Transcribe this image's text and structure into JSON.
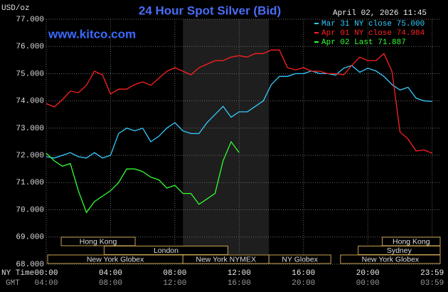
{
  "chart_data": {
    "type": "line",
    "title": "24 Hour Spot Silver (Bid)",
    "unit_label": "USD/oz",
    "timestamp": "April 02, 2026 11:45",
    "watermark": "www.kitco.com",
    "x_row_labels": [
      "NY Time",
      "GMT"
    ],
    "x": [
      0,
      0.5,
      1,
      1.5,
      2,
      2.5,
      3,
      3.5,
      4,
      4.5,
      5,
      5.5,
      6,
      6.5,
      7,
      7.5,
      8,
      8.5,
      9,
      9.5,
      10,
      10.5,
      11,
      11.5,
      12,
      12.5,
      13,
      13.5,
      14,
      14.5,
      15,
      15.5,
      16,
      16.5,
      17,
      17.5,
      18,
      18.5,
      19,
      19.5,
      20,
      20.5,
      21,
      21.5,
      22,
      22.5,
      23,
      23.5,
      24
    ],
    "series": [
      {
        "name": "Mar 31 NY close 75.000",
        "color": "#33ccff",
        "values": [
          71.95,
          71.9,
          72.0,
          72.1,
          71.95,
          71.9,
          72.1,
          71.9,
          72.0,
          72.8,
          73.0,
          72.9,
          73.0,
          72.5,
          72.7,
          73.0,
          73.2,
          72.9,
          72.8,
          72.8,
          73.2,
          73.5,
          73.8,
          73.4,
          73.6,
          73.6,
          73.8,
          74.0,
          74.6,
          74.9,
          74.9,
          75.0,
          75.0,
          75.1,
          75.0,
          75.0,
          74.95,
          75.2,
          75.3,
          75.05,
          75.2,
          75.1,
          74.9,
          74.6,
          74.4,
          74.5,
          74.1,
          74.0,
          73.98
        ]
      },
      {
        "name": "Apr 01 NY close 74.984",
        "color": "#ff2020",
        "values": [
          73.9,
          73.78,
          74.04,
          74.36,
          74.3,
          74.57,
          75.09,
          74.96,
          74.25,
          74.43,
          74.43,
          74.6,
          74.7,
          74.57,
          74.83,
          75.09,
          75.22,
          75.09,
          74.96,
          75.22,
          75.35,
          75.48,
          75.48,
          75.61,
          75.66,
          75.61,
          75.74,
          75.74,
          75.87,
          75.87,
          75.22,
          75.14,
          75.22,
          75.09,
          75.09,
          75.0,
          75.0,
          74.96,
          75.3,
          75.61,
          75.48,
          75.48,
          75.74,
          75.09,
          72.86,
          72.6,
          72.16,
          72.2,
          72.08
        ]
      },
      {
        "name": "Apr 02 Last 71.887",
        "color": "#33ff33",
        "values": [
          72.08,
          71.8,
          71.6,
          71.7,
          70.7,
          69.9,
          70.3,
          70.5,
          70.7,
          71.0,
          71.5,
          71.5,
          71.4,
          71.2,
          71.1,
          70.8,
          70.9,
          70.6,
          70.6,
          70.2,
          70.4,
          70.6,
          71.8,
          72.5,
          72.1,
          null,
          null,
          null,
          null,
          null,
          null,
          null,
          null,
          null,
          null,
          null,
          null,
          null,
          null,
          null,
          null,
          null,
          null,
          null,
          null,
          null,
          null,
          null,
          null
        ]
      }
    ],
    "xlim": [
      0,
      24.5
    ],
    "xticks": [
      {
        "value": 0,
        "label": "00:00"
      },
      {
        "value": 4,
        "label": "04:00"
      },
      {
        "value": 8,
        "label": "08:00"
      },
      {
        "value": 12,
        "label": "12:00"
      },
      {
        "value": 16,
        "label": "16:00"
      },
      {
        "value": 20,
        "label": "20:00"
      },
      {
        "value": 24,
        "label": "23:59"
      }
    ],
    "gmt_ticks": [
      {
        "value": 0,
        "label": "04:00"
      },
      {
        "value": 4,
        "label": "08:00"
      },
      {
        "value": 8,
        "label": "12:00"
      },
      {
        "value": 12,
        "label": "16:00"
      },
      {
        "value": 16,
        "label": "20:00"
      },
      {
        "value": 20,
        "label": "00:00"
      },
      {
        "value": 24,
        "label": "03:59"
      }
    ],
    "ylim": [
      68,
      77
    ],
    "yticks": [
      {
        "value": 68,
        "label": "68.000"
      },
      {
        "value": 69,
        "label": "69.000"
      },
      {
        "value": 70,
        "label": "70.000"
      },
      {
        "value": 71,
        "label": "71.000"
      },
      {
        "value": 72,
        "label": "72.000"
      },
      {
        "value": 73,
        "label": "73.000"
      },
      {
        "value": 74,
        "label": "74.000"
      },
      {
        "value": 75,
        "label": "75.000"
      },
      {
        "value": 76,
        "label": "76.000"
      },
      {
        "value": 77,
        "label": "77.000"
      }
    ],
    "grid": true,
    "session_rows": [
      [
        {
          "label": "Hong Kong",
          "start": 0.93,
          "end": 5.53
        },
        {
          "label": "Hong Kong",
          "start": 20.9,
          "end": 24.5
        }
      ],
      [
        {
          "label": "London",
          "start": 3.6,
          "end": 11.3
        },
        {
          "label": "Sydney",
          "start": 19.4,
          "end": 24.5
        }
      ],
      [
        {
          "label": "New York Globex",
          "start": 0,
          "end": 8.5
        },
        {
          "label": "New York NYMEX",
          "start": 8.5,
          "end": 13.85,
          "shaded": true
        },
        {
          "label": "NY Globex",
          "start": 13.85,
          "end": 17.7
        },
        {
          "label": "New York Globex",
          "start": 18.3,
          "end": 24.5
        }
      ]
    ]
  }
}
